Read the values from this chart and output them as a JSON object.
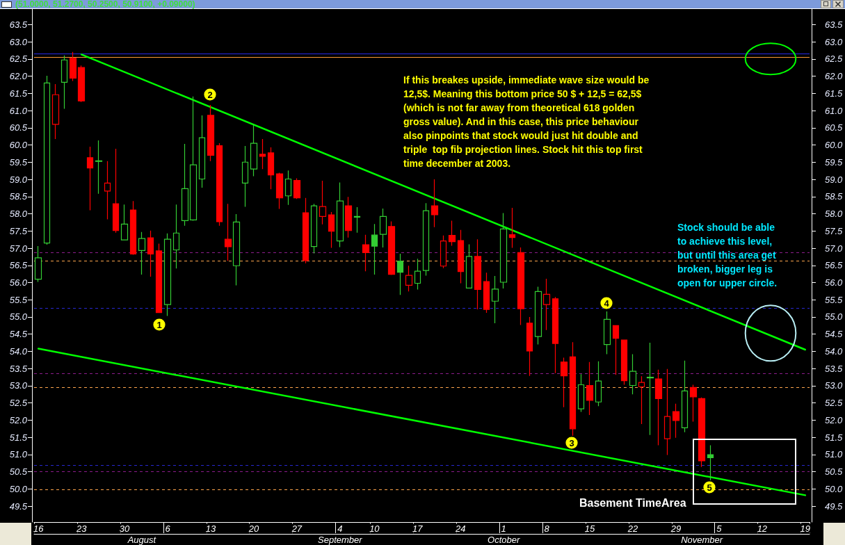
{
  "chart_data": {
    "type": "candlestick",
    "title": "(51.0000, 51.2700, 50.2500, 50.9100, +0.09000)",
    "categories": [
      "16",
      null,
      null,
      null,
      null,
      "23",
      null,
      null,
      null,
      null,
      "30",
      null,
      "\nAugust",
      null,
      null,
      "6",
      null,
      null,
      null,
      null,
      "13",
      null,
      null,
      null,
      null,
      "20",
      null,
      null,
      null,
      null,
      "27",
      null,
      null,
      null,
      null,
      "4\nSeptember",
      null,
      null,
      null,
      "10",
      null,
      null,
      null,
      null,
      "17",
      null,
      null,
      null,
      null,
      "24",
      null,
      null,
      null,
      null,
      "1\nOctober",
      null,
      null,
      null,
      null,
      "8",
      null,
      null,
      null,
      null,
      "15",
      null,
      null,
      null,
      null,
      "22",
      null,
      null,
      null,
      null,
      "29",
      null,
      null,
      "\nNovember",
      null,
      "5",
      null,
      null,
      null,
      null,
      "12",
      null,
      null,
      null,
      null,
      "19"
    ],
    "ylim": [
      49.04,
      63.95
    ],
    "yticks": [
      49.5,
      {
        "value": 50,
        "label": "50.0"
      },
      50.5,
      {
        "value": 51,
        "label": "51.0"
      },
      51.5,
      {
        "value": 52,
        "label": "52.0"
      },
      52.5,
      {
        "value": 53,
        "label": "53.0"
      },
      53.5,
      {
        "value": 54,
        "label": "54.0"
      },
      54.5,
      {
        "value": 55,
        "label": "55.0"
      },
      55.5,
      {
        "value": 56,
        "label": "56.0"
      },
      56.5,
      {
        "value": 57,
        "label": "57.0"
      },
      57.5,
      {
        "value": 58,
        "label": "58.0"
      },
      58.5,
      {
        "value": 59,
        "label": "59.0"
      },
      59.5,
      {
        "value": 60,
        "label": "60.0"
      },
      60.5,
      {
        "value": 61,
        "label": "61.0"
      },
      61.5,
      {
        "value": 62,
        "label": "62.0"
      },
      62.5,
      {
        "value": 63,
        "label": "63.0"
      },
      63.5
    ],
    "y2lim": [
      49.04,
      63.95
    ],
    "y2ticks": [
      49.5,
      {
        "value": 50,
        "label": "50.0"
      },
      50.5,
      {
        "value": 51,
        "label": "51.0"
      },
      51.5,
      {
        "value": 52,
        "label": "52.0"
      },
      52.5,
      {
        "value": 53,
        "label": "53.0"
      },
      53.5,
      {
        "value": 54,
        "label": "54.0"
      },
      54.5,
      {
        "value": 55,
        "label": "55.0"
      },
      55.5,
      {
        "value": 56,
        "label": "56.0"
      },
      56.5,
      {
        "value": 57,
        "label": "57.0"
      },
      57.5,
      {
        "value": 58,
        "label": "58.0"
      },
      58.5,
      {
        "value": 59,
        "label": "59.0"
      },
      59.5,
      {
        "value": 60,
        "label": "60.0"
      },
      60.5,
      {
        "value": 61,
        "label": "61.0"
      },
      61.5,
      {
        "value": 62,
        "label": "62.0"
      },
      62.5,
      {
        "value": 63,
        "label": "63.0"
      },
      63.5
    ],
    "grid": false,
    "marker": "none",
    "series": [
      {
        "ohlc": [
          [
            56.1,
            57.06,
            56.02,
            56.72
          ],
          [
            57.15,
            62.01,
            57.1,
            61.8
          ],
          [
            60.6,
            61.77,
            60.17,
            61.46
          ],
          [
            61.82,
            62.6,
            61.05,
            62.47
          ],
          [
            62.52,
            62.7,
            61.86,
            61.94
          ],
          [
            62.25,
            62.31,
            61.25,
            61.28
          ],
          [
            59.63,
            59.95,
            58.1,
            59.33
          ],
          [
            59.54,
            60.13,
            58.58,
            59.52
          ],
          [
            58.66,
            59.53,
            57.84,
            58.89
          ],
          [
            58.29,
            59.89,
            57.45,
            57.51
          ],
          [
            57.24,
            58.27,
            57.24,
            57.7
          ],
          [
            58.11,
            58.37,
            56.81,
            56.83
          ],
          [
            56.93,
            57.47,
            56.23,
            57.28
          ],
          [
            57.3,
            57.51,
            56.17,
            56.83
          ],
          [
            56.92,
            57.13,
            55.13,
            55.13
          ],
          [
            55.36,
            57.43,
            55.03,
            57.26
          ],
          [
            56.95,
            58.27,
            56.41,
            57.44
          ],
          [
            57.8,
            60.03,
            57.65,
            58.73
          ],
          [
            57.82,
            61.41,
            57.8,
            59.42
          ],
          [
            59.01,
            60.86,
            58.76,
            60.21
          ],
          [
            60.86,
            61.16,
            59.53,
            59.7
          ],
          [
            59.98,
            60.05,
            57.65,
            57.77
          ],
          [
            57.26,
            58.29,
            56.63,
            57.04
          ],
          [
            56.49,
            57.99,
            55.92,
            57.76
          ],
          [
            58.89,
            59.97,
            58.2,
            59.5
          ],
          [
            59.3,
            60.61,
            59.09,
            60.05
          ],
          [
            59.73,
            60.17,
            59.3,
            59.67
          ],
          [
            59.77,
            59.93,
            58.71,
            59.13
          ],
          [
            59.16,
            59.19,
            58.14,
            58.46
          ],
          [
            58.52,
            59.26,
            58.26,
            59.01
          ],
          [
            58.97,
            59.03,
            58.43,
            58.46
          ],
          [
            58.03,
            58.46,
            56.56,
            56.64
          ],
          [
            57.05,
            58.29,
            56.85,
            58.23
          ],
          [
            57.92,
            58.96,
            57.69,
            58.21
          ],
          [
            57.97,
            58.05,
            57.01,
            57.49
          ],
          [
            57.21,
            58.91,
            57.03,
            58.37
          ],
          [
            58.23,
            58.49,
            57.31,
            57.51
          ],
          [
            57.92,
            58.19,
            57.45,
            57.9
          ],
          [
            57.1,
            57.39,
            56.33,
            56.87
          ],
          [
            57.38,
            57.7,
            56.23,
            57.06
          ],
          [
            57.4,
            58.15,
            57.02,
            57.92
          ],
          [
            57.63,
            57.78,
            56.22,
            56.24
          ],
          [
            56.62,
            56.84,
            55.64,
            56.3
          ],
          [
            55.92,
            56.49,
            55.74,
            56.21
          ],
          [
            55.98,
            56.69,
            55.8,
            56.33
          ],
          [
            56.35,
            58.31,
            56.2,
            58.09
          ],
          [
            58.23,
            59.0,
            57.61,
            57.97
          ],
          [
            56.48,
            57.37,
            56.42,
            57.21
          ],
          [
            57.37,
            57.8,
            57.07,
            57.19
          ],
          [
            57.22,
            57.53,
            55.98,
            56.32
          ],
          [
            55.84,
            57.11,
            55.84,
            56.76
          ],
          [
            56.76,
            57.26,
            55.22,
            55.8
          ],
          [
            56.03,
            56.29,
            55.12,
            55.22
          ],
          [
            55.46,
            56.19,
            54.82,
            55.81
          ],
          [
            56.01,
            58.02,
            55.83,
            57.56
          ],
          [
            57.39,
            58.17,
            57.01,
            57.31
          ],
          [
            56.87,
            57.02,
            54.77,
            55.24
          ],
          [
            54.82,
            55.0,
            53.29,
            54.01
          ],
          [
            54.43,
            55.88,
            54.2,
            55.74
          ],
          [
            55.36,
            56.11,
            54.62,
            55.66
          ],
          [
            55.53,
            55.58,
            53.37,
            54.23
          ],
          [
            53.69,
            53.82,
            52.38,
            53.29
          ],
          [
            53.84,
            54.27,
            51.55,
            51.75
          ],
          [
            52.33,
            53.34,
            52.24,
            53.03
          ],
          [
            53.01,
            53.69,
            52.15,
            52.58
          ],
          [
            52.53,
            53.71,
            52.41,
            53.14
          ],
          [
            54.2,
            55.16,
            53.92,
            54.93
          ],
          [
            54.75,
            54.76,
            53.32,
            54.38
          ],
          [
            54.33,
            54.33,
            53.03,
            53.15
          ],
          [
            53.01,
            53.92,
            52.75,
            53.42
          ],
          [
            52.97,
            53.28,
            51.89,
            53.1
          ],
          [
            53.25,
            54.25,
            51.57,
            53.23
          ],
          [
            53.2,
            53.47,
            51.27,
            52.63
          ],
          [
            51.46,
            53.49,
            50.99,
            52.11
          ],
          [
            52.25,
            52.48,
            51.49,
            51.99
          ],
          [
            51.78,
            53.73,
            51.65,
            52.85
          ],
          [
            52.95,
            53.03,
            51.96,
            52.68
          ],
          [
            52.63,
            52.66,
            50.64,
            50.82
          ],
          [
            51.0,
            51.27,
            50.25,
            50.91
          ],
          null,
          null,
          null,
          null,
          null,
          null,
          null,
          null,
          null,
          null,
          null
        ],
        "colors": [
          "#33cc33",
          "#33cc33",
          "#ff0000",
          "#33cc33",
          "#ff0000",
          "#ff0000",
          "#ff0000",
          "#33cc33",
          "#ff0000",
          "#ff0000",
          "#33cc33",
          "#ff0000",
          "#33cc33",
          "#ff0000",
          "#ff0000",
          "#33cc33",
          "#33cc33",
          "#33cc33",
          "#33cc33",
          "#33cc33",
          "#ff0000",
          "#ff0000",
          "#ff0000",
          "#33cc33",
          "#33cc33",
          "#33cc33",
          "#ff0000",
          "#ff0000",
          "#ff0000",
          "#33cc33",
          "#ff0000",
          "#ff0000",
          "#33cc33",
          "#ff0000",
          "#ff0000",
          "#33cc33",
          "#ff0000",
          "#33cc33",
          "#ff0000",
          "#33cc33",
          "#33cc33",
          "#ff0000",
          "#33cc33",
          "#ff0000",
          "#33cc33",
          "#33cc33",
          "#ff0000",
          "#ff0000",
          "#ff0000",
          "#ff0000",
          "#33cc33",
          "#ff0000",
          "#ff0000",
          "#33cc33",
          "#33cc33",
          "#ff0000",
          "#ff0000",
          "#ff0000",
          "#33cc33",
          "#ff0000",
          "#ff0000",
          "#ff0000",
          "#ff0000",
          "#33cc33",
          "#ff0000",
          "#33cc33",
          "#33cc33",
          "#ff0000",
          "#ff0000",
          "#33cc33",
          "#ff0000",
          "#33cc33",
          "#ff0000",
          "#ff0000",
          "#ff0000",
          "#33cc33",
          "#ff0000",
          "#ff0000",
          "#33cc33",
          null,
          null,
          null,
          null,
          null,
          null,
          null,
          null,
          null,
          null,
          null
        ]
      },
      {
        "type": "line",
        "color": "#00ff00",
        "x": [
          "23",
          "19"
        ],
        "values": [
          62.63,
          54.05
        ]
      },
      {
        "type": "line",
        "color": "#00ff00",
        "x": [
          "16",
          "19"
        ],
        "values": [
          54.08,
          49.82
        ]
      }
    ],
    "ref_lines": [
      {
        "axis": "y",
        "value": 62.65,
        "color": "#2828e6",
        "line_style": "solid"
      },
      {
        "axis": "y",
        "value": 62.55,
        "color": "#ff9933",
        "line_style": "solid"
      },
      {
        "axis": "y",
        "value": 56.87,
        "color": "#8c1c8c",
        "line_style": "dashed"
      },
      {
        "axis": "y",
        "value": 56.63,
        "color": "#ffa64d",
        "line_style": "dashed"
      },
      {
        "axis": "y",
        "value": 55.26,
        "color": "#2828d2",
        "line_style": "dashed"
      },
      {
        "axis": "y",
        "value": 53.36,
        "color": "#8c1c8c",
        "line_style": "dashed"
      },
      {
        "axis": "y",
        "value": 52.95,
        "color": "#ffa64d",
        "line_style": "dashed"
      },
      {
        "axis": "y",
        "value": 50.69,
        "color": "#2828d2",
        "line_style": "dashed"
      },
      {
        "axis": "y",
        "value": 50.51,
        "color": "#8c1c8c",
        "line_style": "dashed"
      },
      {
        "axis": "y",
        "value": 49.98,
        "color": "#ffa64d",
        "line_style": "dashed"
      }
    ],
    "annotations": [
      "1",
      "2",
      "3",
      "4",
      "5",
      "If this breakes upside, immediate wave size would be\n12,5$. Meaning this bottom price 50 $ + 12,5 = 62,5$\n(which is not far away from theoretical 618 golden\ngross value). And in this case, this price behaviour\nalso pinpoints that stock would just hit double and\ntriple  top fib projection lines. Stock hit this top first\ntime december at 2003.",
      "Stock should be able\nto achieve this level,\nbut until this area get\nbroken, bigger leg is\nopen for upper circle.",
      "Basement TimeArea"
    ]
  }
}
